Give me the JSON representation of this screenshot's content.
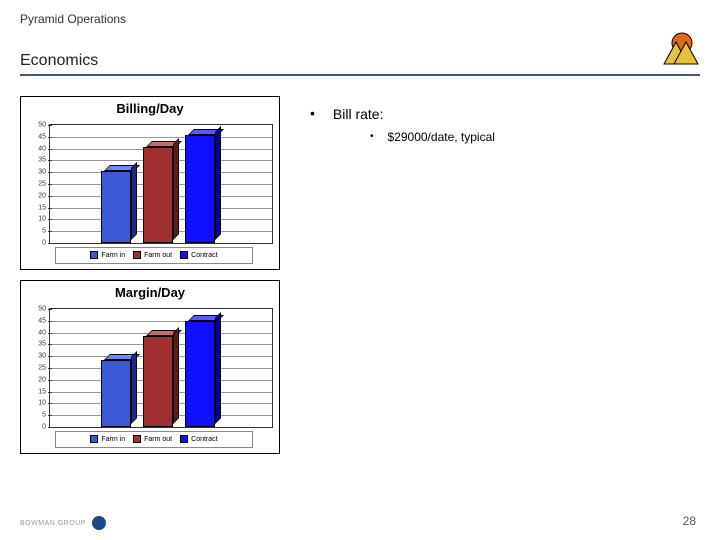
{
  "header": {
    "super_title": "Pyramid Operations",
    "page_title": "Economics"
  },
  "logo": {
    "sun_color": "#e06a1a",
    "mountain_color": "#e8c040",
    "border_color": "#000000"
  },
  "charts": [
    {
      "title": "Billing/Day",
      "type": "bar",
      "ymax": 50,
      "ytick_step": 5,
      "grid_color": "#999999",
      "plot_border": "#333333",
      "series": [
        {
          "label": "Farm in",
          "value": 30,
          "front": "#3a5ad8",
          "top": "#6a8aff",
          "side": "#1a2a88"
        },
        {
          "label": "Farm out",
          "value": 40,
          "front": "#a03030",
          "top": "#c86a6a",
          "side": "#601818"
        },
        {
          "label": "Contract",
          "value": 45,
          "front": "#1010ff",
          "top": "#5a5aff",
          "side": "#0000a0"
        }
      ]
    },
    {
      "title": "Margin/Day",
      "type": "bar",
      "ymax": 50,
      "ytick_step": 5,
      "grid_color": "#999999",
      "plot_border": "#333333",
      "series": [
        {
          "label": "Farm in",
          "value": 28,
          "front": "#3a5ad8",
          "top": "#6a8aff",
          "side": "#1a2a88"
        },
        {
          "label": "Farm out",
          "value": 38,
          "front": "#a03030",
          "top": "#c86a6a",
          "side": "#601818"
        },
        {
          "label": "Contract",
          "value": 44,
          "front": "#1010ff",
          "top": "#5a5aff",
          "side": "#0000a0"
        }
      ]
    }
  ],
  "bullets": {
    "l1": "Bill rate:",
    "l2": "$29000/date, typical"
  },
  "footer": {
    "brand": "BOWMAN GROUP",
    "page_number": "28"
  },
  "title_rule_color": "#3a5a7a"
}
